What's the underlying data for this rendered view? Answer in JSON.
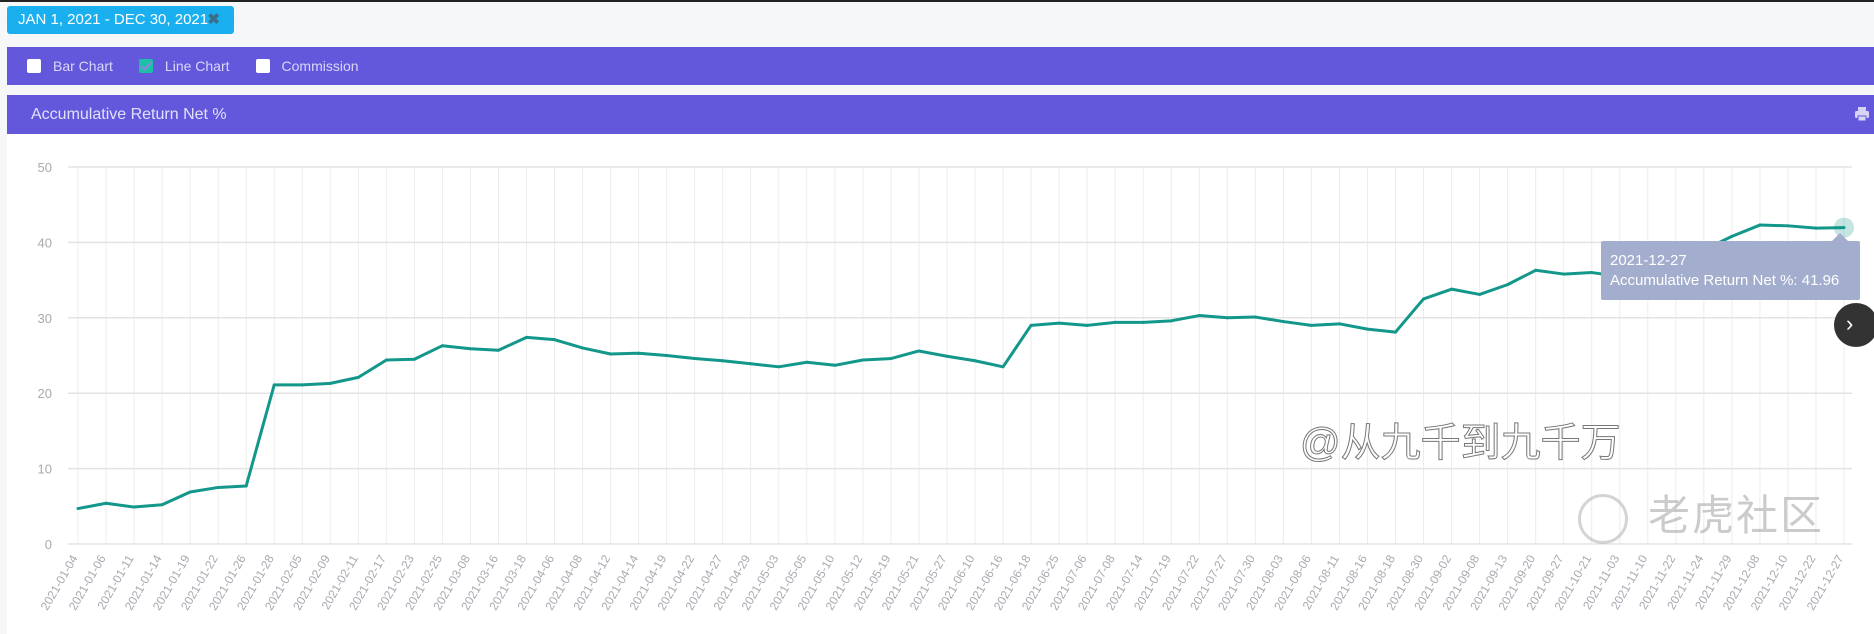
{
  "date_filter": {
    "label": "JAN 1, 2021 - DEC 30, 2021",
    "clear_icon": "close-icon"
  },
  "toolbar": {
    "options": [
      {
        "label": "Bar Chart",
        "checked": false
      },
      {
        "label": "Line Chart",
        "checked": true
      },
      {
        "label": "Commission",
        "checked": false
      }
    ]
  },
  "panel": {
    "title": "Accumulative Return Net %",
    "print_icon": "printer-icon"
  },
  "tooltip": {
    "date": "2021-12-27",
    "text": "Accumulative Return Net %: 41.96"
  },
  "watermark": {
    "brand": "老虎社区",
    "user": "@从九千到九千万"
  },
  "colors": {
    "accent": "#6358dc",
    "tag": "#1ab0f0",
    "line": "#13978a"
  },
  "chart_data": {
    "type": "line",
    "title": "Accumulative Return Net %",
    "xlabel": "",
    "ylabel": "",
    "ylim": [
      0,
      50
    ],
    "yticks": [
      0,
      10,
      20,
      30,
      40,
      50
    ],
    "grid": true,
    "categories": [
      "2021-01-04",
      "2021-01-06",
      "2021-01-11",
      "2021-01-14",
      "2021-01-19",
      "2021-01-22",
      "2021-01-26",
      "2021-01-28",
      "2021-02-05",
      "2021-02-09",
      "2021-02-11",
      "2021-02-17",
      "2021-02-23",
      "2021-02-25",
      "2021-03-08",
      "2021-03-16",
      "2021-03-18",
      "2021-04-06",
      "2021-04-08",
      "2021-04-12",
      "2021-04-14",
      "2021-04-19",
      "2021-04-22",
      "2021-04-27",
      "2021-04-29",
      "2021-05-03",
      "2021-05-05",
      "2021-05-10",
      "2021-05-12",
      "2021-05-19",
      "2021-05-21",
      "2021-05-27",
      "2021-06-10",
      "2021-06-16",
      "2021-06-18",
      "2021-06-25",
      "2021-07-06",
      "2021-07-08",
      "2021-07-14",
      "2021-07-19",
      "2021-07-22",
      "2021-07-27",
      "2021-07-30",
      "2021-08-03",
      "2021-08-06",
      "2021-08-11",
      "2021-08-16",
      "2021-08-18",
      "2021-08-30",
      "2021-09-02",
      "2021-09-08",
      "2021-09-13",
      "2021-09-20",
      "2021-09-27",
      "2021-10-21",
      "2021-11-03",
      "2021-11-10",
      "2021-11-22",
      "2021-11-24",
      "2021-11-29",
      "2021-12-08",
      "2021-12-10",
      "2021-12-22",
      "2021-12-27"
    ],
    "series": [
      {
        "name": "Accumulative Return Net %",
        "values": [
          4.7,
          5.4,
          4.9,
          5.2,
          6.9,
          7.5,
          7.7,
          21.1,
          21.1,
          21.3,
          22.1,
          24.4,
          24.5,
          26.3,
          25.9,
          25.7,
          27.4,
          27.1,
          26.0,
          25.2,
          25.3,
          25.0,
          24.6,
          24.3,
          23.9,
          23.5,
          24.1,
          23.7,
          24.4,
          24.6,
          25.6,
          24.9,
          24.3,
          23.5,
          29.0,
          29.3,
          29.0,
          29.4,
          29.4,
          29.6,
          30.3,
          30.0,
          30.1,
          29.5,
          29.0,
          29.2,
          28.5,
          28.1,
          32.5,
          33.8,
          33.1,
          34.4,
          36.3,
          35.8,
          36.0,
          35.5,
          35.6,
          35.8,
          39.0,
          40.8,
          42.3,
          42.2,
          41.9,
          41.96
        ]
      }
    ],
    "highlighted_point": "2021-12-27"
  }
}
